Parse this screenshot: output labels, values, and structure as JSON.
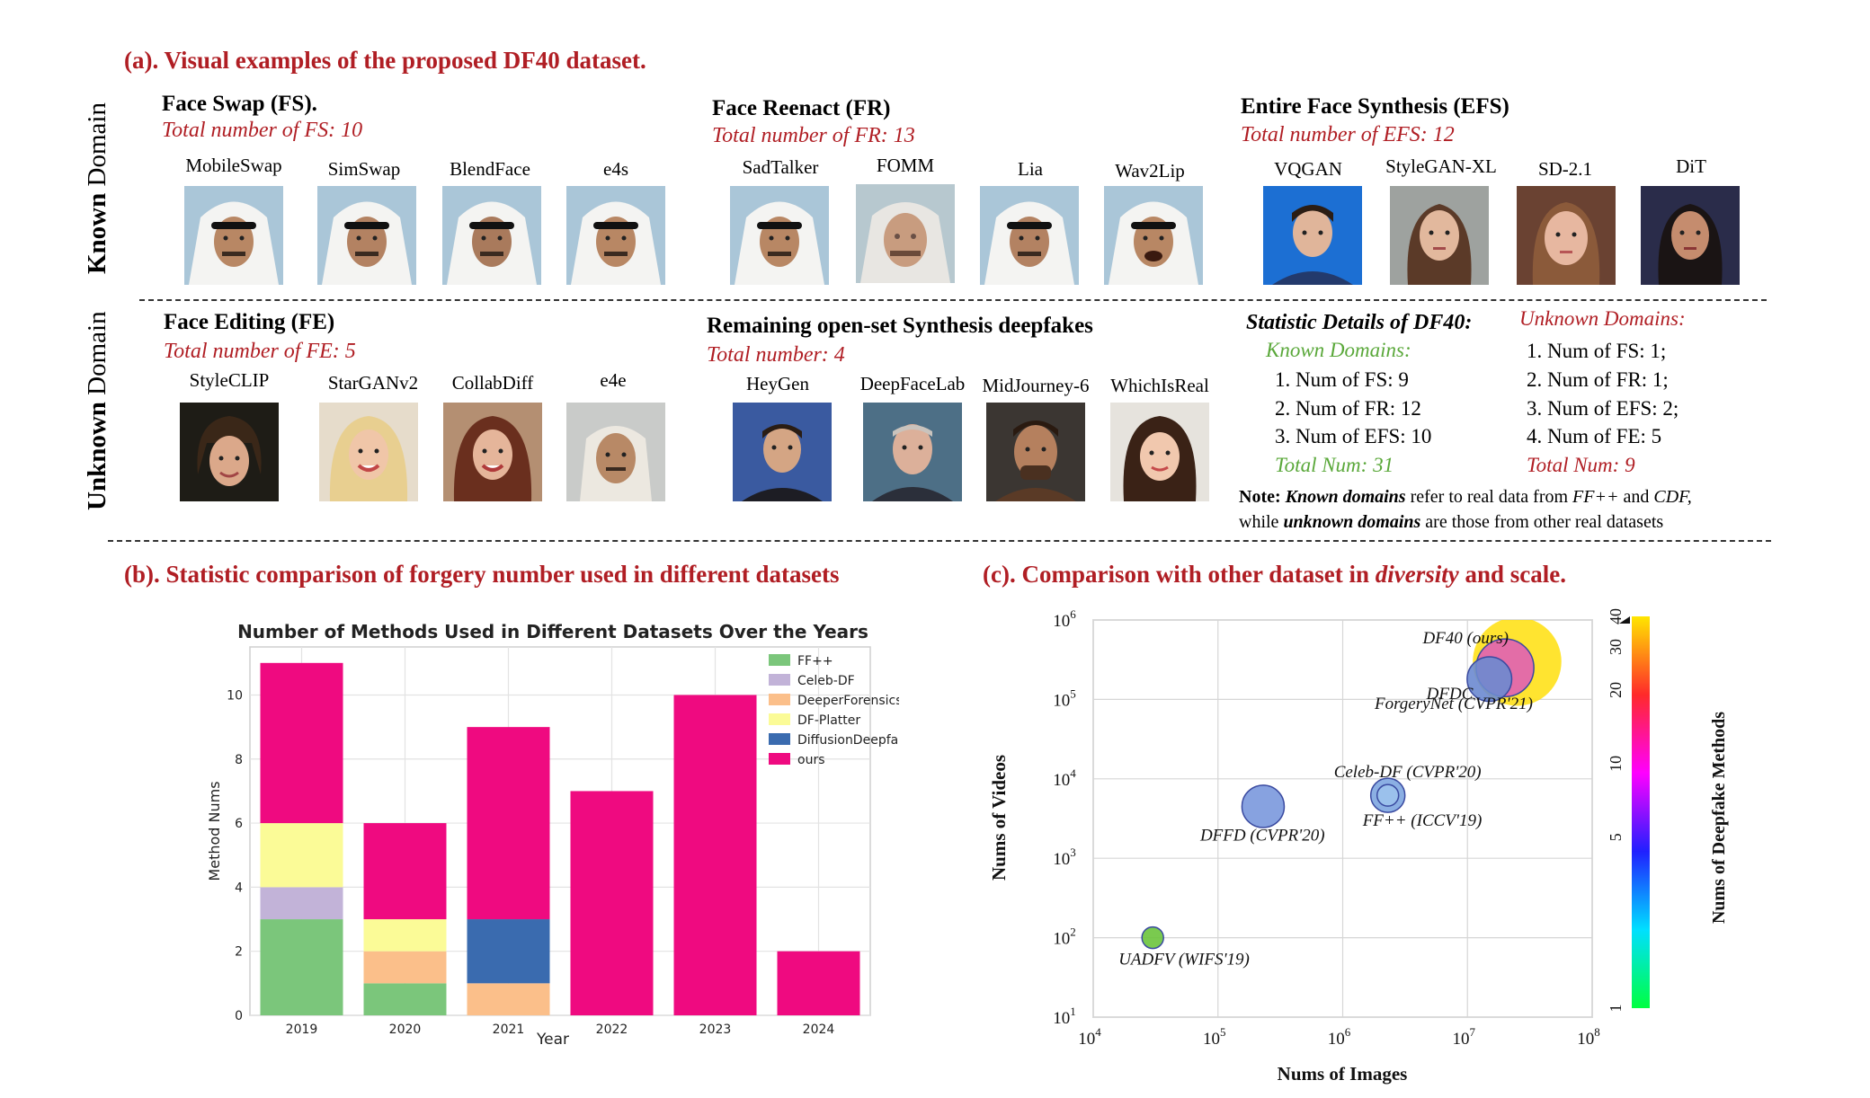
{
  "section_a": {
    "title": "(a). Visual examples of the proposed DF40 dataset.",
    "known_domain_label": [
      "Known",
      "Domain"
    ],
    "unknown_domain_label": [
      "Unknown",
      "Domain"
    ],
    "fs": {
      "title": "Face Swap (FS).",
      "total": "Total number of FS: 10",
      "methods": [
        "MobileSwap",
        "SimSwap",
        "BlendFace",
        "e4s"
      ]
    },
    "fr": {
      "title": "Face Reenact (FR)",
      "total": "Total number of FR: 13",
      "methods": [
        "SadTalker",
        "FOMM",
        "Lia",
        "Wav2Lip"
      ]
    },
    "efs": {
      "title": "Entire Face Synthesis (EFS)",
      "total": "Total number of EFS: 12",
      "methods": [
        "VQGAN",
        "StyleGAN-XL",
        "SD-2.1",
        "DiT"
      ]
    },
    "fe": {
      "title": "Face Editing (FE)",
      "total": "Total number of FE: 5",
      "methods": [
        "StyleCLIP",
        "StarGANv2",
        "CollabDiff",
        "e4e"
      ]
    },
    "open": {
      "title": "Remaining open-set Synthesis deepfakes",
      "total": "Total number: 4",
      "methods": [
        "HeyGen",
        "DeepFaceLab",
        "MidJourney-6",
        "WhichIsReal"
      ]
    },
    "stats": {
      "title": "Statistic Details of DF40:",
      "known_heading": "Known Domains:",
      "known_items": [
        "1. Num of FS: 9",
        "2. Num of FR: 12",
        "3. Num of EFS: 10"
      ],
      "known_total": "Total Num: 31",
      "unknown_heading": "Unknown Domains:",
      "unknown_items": [
        "1. Num of FS: 1;",
        "2. Num of FR: 1;",
        "3. Num of EFS: 2;",
        "4. Num of FE: 5"
      ],
      "unknown_total": "Total Num: 9",
      "note_label": "Note:",
      "note_known": "Known domains",
      "note_mid": " refer to real data from ",
      "note_ffpp": "FF++",
      "note_and": " and ",
      "note_cdf": "CDF,",
      "note_line2_pre": "while ",
      "note_unknown": "unknown domains",
      "note_line2_post": " are those from other real datasets"
    }
  },
  "section_b": {
    "title": "(b). Statistic comparison of forgery number used in different datasets"
  },
  "section_c": {
    "title_pre": "(c). Comparison with other dataset in ",
    "title_em": "diversity",
    "title_post": " and scale."
  },
  "chart_data": [
    {
      "type": "bar",
      "stacked": true,
      "title": "Number of Methods Used in Different Datasets Over the Years",
      "xlabel": "Year",
      "ylabel": "Method Nums",
      "categories": [
        "2019",
        "2020",
        "2021",
        "2022",
        "2023",
        "2024"
      ],
      "ylim": [
        0,
        11.5
      ],
      "yticks": [
        "0",
        "2",
        "4",
        "6",
        "8",
        "10"
      ],
      "grid": true,
      "legend_position": "top-right",
      "series": [
        {
          "name": "FF++",
          "color": "#7bc67b",
          "values": [
            3,
            1,
            0,
            0,
            0,
            0
          ]
        },
        {
          "name": "Celeb-DF",
          "color": "#c2b3d8",
          "values": [
            1,
            0,
            0,
            0,
            0,
            0
          ]
        },
        {
          "name": "DeeperForensics",
          "color": "#fbbf8a",
          "values": [
            0,
            1,
            1,
            0,
            0,
            0
          ]
        },
        {
          "name": "DF-Platter",
          "color": "#fbfb97",
          "values": [
            2,
            1,
            0,
            0,
            0,
            0
          ]
        },
        {
          "name": "DiffusionDeepfake",
          "color": "#3a6baf",
          "values": [
            0,
            0,
            2,
            0,
            0,
            0
          ]
        },
        {
          "name": "ours",
          "color": "#ef0a80",
          "values": [
            5,
            3,
            6,
            7,
            10,
            2
          ]
        }
      ]
    },
    {
      "type": "scatter",
      "subtype": "bubble",
      "xlabel": "Nums of Images",
      "ylabel": "Nums of Videos",
      "xscale": "log",
      "yscale": "log",
      "xlim": [
        10000,
        100000000
      ],
      "ylim": [
        10,
        1000000
      ],
      "x_ticks": [
        {
          "base": "10",
          "exp": "4"
        },
        {
          "base": "10",
          "exp": "5"
        },
        {
          "base": "10",
          "exp": "6"
        },
        {
          "base": "10",
          "exp": "7"
        },
        {
          "base": "10",
          "exp": "8"
        }
      ],
      "y_ticks": [
        {
          "base": "10",
          "exp": "1"
        },
        {
          "base": "10",
          "exp": "2"
        },
        {
          "base": "10",
          "exp": "3"
        },
        {
          "base": "10",
          "exp": "4"
        },
        {
          "base": "10",
          "exp": "5"
        },
        {
          "base": "10",
          "exp": "6"
        }
      ],
      "colorbar": {
        "label": "Nums of Deepfake Methods",
        "ticks": [
          "1",
          "5",
          "10",
          "20",
          "30",
          "40"
        ]
      },
      "grid": true,
      "points": [
        {
          "label": "DF40 (ours)",
          "x": 25000000,
          "y": 300000,
          "methods": 40,
          "color": "#ffe11a"
        },
        {
          "label": "ForgeryNet (CVPR'21)",
          "x": 20000000,
          "y": 250000,
          "methods": 15,
          "color": "#e05fb5"
        },
        {
          "label": "DFDC",
          "x": 15000000,
          "y": 180000,
          "methods": 8,
          "color": "#6b8ad0"
        },
        {
          "label": "Celeb-DF (CVPR'20)",
          "x": 2300000,
          "y": 6200,
          "methods": 1,
          "color": "#9cc3ec"
        },
        {
          "label": "FF++ (ICCV'19)",
          "x": 2300000,
          "y": 6200,
          "methods": 4,
          "color": "#7ea6e0"
        },
        {
          "label": "DFFD (CVPR'20)",
          "x": 230000,
          "y": 4500,
          "methods": 7,
          "color": "#7a98dd"
        },
        {
          "label": "UADFV (WIFS'19)",
          "x": 30000,
          "y": 100,
          "methods": 1,
          "color": "#6cc43c"
        }
      ]
    }
  ]
}
